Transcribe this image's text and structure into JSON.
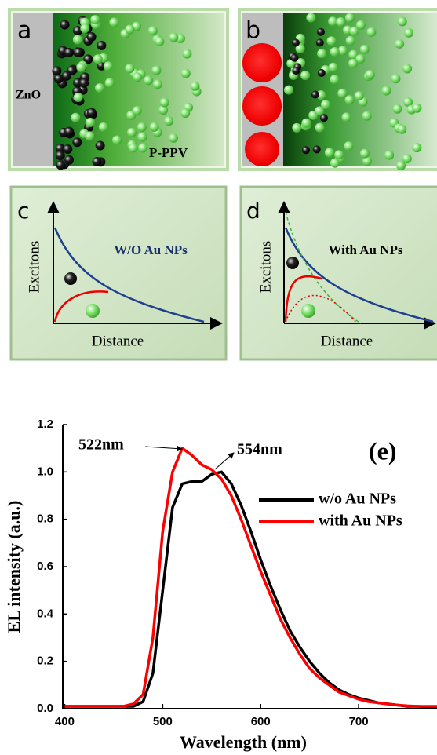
{
  "panels": [
    {
      "label": "a",
      "left_text": "ZnO",
      "right_text": "P-PPV"
    },
    {
      "label": "b"
    },
    {
      "label": "c",
      "y_label": "Excitons",
      "x_label": "Distance",
      "caption": "W/O Au NPs"
    },
    {
      "label": "d",
      "y_label": "Excitons",
      "x_label": "Distance",
      "caption": "With Au NPs"
    }
  ],
  "chart_data": {
    "type": "line",
    "x_label": "Wavelength (nm)",
    "y_label": "EL intensity (a.u.)",
    "annotations": [
      "522nm",
      "554nm",
      "(e)"
    ],
    "x": [
      400,
      410,
      420,
      430,
      440,
      450,
      460,
      470,
      480,
      490,
      500,
      510,
      520,
      530,
      540,
      550,
      560,
      570,
      580,
      590,
      600,
      610,
      620,
      630,
      640,
      650,
      660,
      670,
      680,
      690,
      700,
      710,
      720,
      730,
      740,
      750,
      760,
      770,
      780
    ],
    "series": [
      {
        "name": "w/o Au NPs",
        "color": "#000000",
        "values": [
          0.01,
          0.01,
          0.01,
          0.01,
          0.01,
          0.01,
          0.01,
          0.01,
          0.03,
          0.15,
          0.5,
          0.85,
          0.95,
          0.96,
          0.96,
          0.99,
          1.0,
          0.95,
          0.86,
          0.75,
          0.63,
          0.52,
          0.42,
          0.33,
          0.26,
          0.2,
          0.15,
          0.11,
          0.08,
          0.06,
          0.045,
          0.035,
          0.025,
          0.02,
          0.015,
          0.01,
          0.01,
          0.008,
          0.005
        ]
      },
      {
        "name": "with Au NPs",
        "color": "#ff0000",
        "values": [
          0.01,
          0.01,
          0.01,
          0.01,
          0.01,
          0.01,
          0.01,
          0.02,
          0.06,
          0.3,
          0.75,
          1.0,
          1.1,
          1.07,
          1.03,
          1.01,
          0.97,
          0.9,
          0.8,
          0.69,
          0.58,
          0.48,
          0.38,
          0.3,
          0.23,
          0.17,
          0.13,
          0.1,
          0.07,
          0.055,
          0.04,
          0.03,
          0.025,
          0.02,
          0.015,
          0.012,
          0.01,
          0.01,
          0.01
        ]
      }
    ],
    "xlim": [
      398,
      780
    ],
    "xticks": [
      400,
      500,
      600,
      700
    ],
    "ylim": [
      0,
      1.2
    ],
    "yticks": [
      {
        "value": 0,
        "label": "0.0"
      },
      0.2,
      0.4,
      0.6,
      0.8,
      {
        "value": 1,
        "label": "1.0"
      },
      1.2
    ],
    "legend": "upper right"
  }
}
